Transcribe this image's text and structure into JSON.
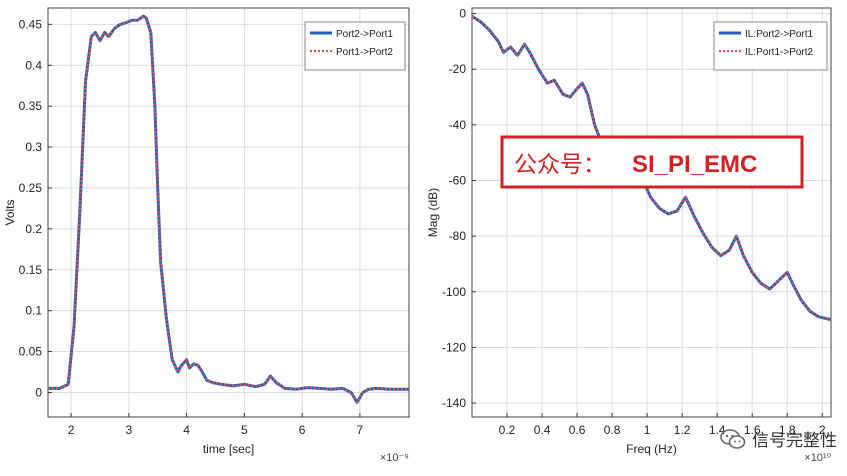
{
  "chart_data": [
    {
      "type": "line",
      "title": "",
      "xlabel": "time [sec]",
      "ylabel": "Volts",
      "x_exponent": "×10⁻⁹",
      "xlim": [
        1.6,
        7.85
      ],
      "ylim": [
        -0.03,
        0.47
      ],
      "xticks": [
        2,
        3,
        4,
        5,
        6,
        7
      ],
      "yticks": [
        0,
        0.05,
        0.1,
        0.15,
        0.2,
        0.25,
        0.3,
        0.35,
        0.4,
        0.45
      ],
      "grid": true,
      "legend_position": "top-right",
      "x": [
        1.6,
        1.8,
        1.95,
        2.05,
        2.15,
        2.25,
        2.35,
        2.42,
        2.5,
        2.58,
        2.65,
        2.75,
        2.85,
        2.95,
        3.05,
        3.15,
        3.25,
        3.3,
        3.38,
        3.45,
        3.5,
        3.55,
        3.65,
        3.75,
        3.85,
        3.9,
        4.0,
        4.05,
        4.12,
        4.2,
        4.27,
        4.35,
        4.45,
        4.6,
        4.8,
        5.0,
        5.2,
        5.35,
        5.45,
        5.55,
        5.7,
        5.9,
        6.1,
        6.3,
        6.5,
        6.7,
        6.85,
        6.95,
        7.05,
        7.15,
        7.3,
        7.5,
        7.85
      ],
      "series": [
        {
          "name": "Port2->Port1",
          "color": "#1f5fbf",
          "style": "solid",
          "values": [
            0.005,
            0.005,
            0.01,
            0.08,
            0.22,
            0.38,
            0.435,
            0.44,
            0.43,
            0.44,
            0.435,
            0.445,
            0.45,
            0.452,
            0.455,
            0.455,
            0.46,
            0.458,
            0.44,
            0.35,
            0.25,
            0.16,
            0.09,
            0.04,
            0.025,
            0.032,
            0.04,
            0.03,
            0.035,
            0.033,
            0.025,
            0.015,
            0.012,
            0.01,
            0.008,
            0.01,
            0.007,
            0.01,
            0.02,
            0.012,
            0.005,
            0.004,
            0.006,
            0.005,
            0.004,
            0.005,
            0.0,
            -0.012,
            0.0,
            0.004,
            0.005,
            0.004,
            0.004
          ]
        },
        {
          "name": "Port1->Port2",
          "color": "#d9534f",
          "style": "dotted",
          "values": [
            0.005,
            0.005,
            0.01,
            0.08,
            0.22,
            0.38,
            0.435,
            0.44,
            0.43,
            0.44,
            0.435,
            0.445,
            0.45,
            0.452,
            0.455,
            0.455,
            0.46,
            0.458,
            0.44,
            0.35,
            0.25,
            0.16,
            0.09,
            0.04,
            0.025,
            0.032,
            0.04,
            0.03,
            0.035,
            0.033,
            0.025,
            0.015,
            0.012,
            0.01,
            0.008,
            0.01,
            0.007,
            0.01,
            0.02,
            0.012,
            0.005,
            0.004,
            0.006,
            0.005,
            0.004,
            0.005,
            0.0,
            -0.012,
            0.0,
            0.004,
            0.005,
            0.004,
            0.004
          ]
        }
      ]
    },
    {
      "type": "line",
      "title": "",
      "xlabel": "Freq (Hz)",
      "ylabel": "Mag (dB)",
      "x_exponent": "×10¹⁰",
      "xlim": [
        0.0,
        2.05
      ],
      "ylim": [
        -145,
        2
      ],
      "xticks": [
        0.2,
        0.4,
        0.6,
        0.8,
        1,
        1.2,
        1.4,
        1.6,
        1.8,
        2
      ],
      "yticks": [
        0,
        -20,
        -40,
        -60,
        -80,
        -100,
        -120,
        -140
      ],
      "grid": true,
      "legend_position": "top-right",
      "x": [
        0.0,
        0.05,
        0.1,
        0.15,
        0.18,
        0.22,
        0.26,
        0.3,
        0.33,
        0.38,
        0.43,
        0.47,
        0.52,
        0.56,
        0.6,
        0.63,
        0.66,
        0.7,
        0.75,
        0.8,
        0.84,
        0.88,
        0.92,
        0.97,
        1.02,
        1.07,
        1.12,
        1.17,
        1.22,
        1.27,
        1.32,
        1.37,
        1.42,
        1.47,
        1.51,
        1.55,
        1.6,
        1.65,
        1.7,
        1.75,
        1.8,
        1.83,
        1.88,
        1.93,
        1.98,
        2.05
      ],
      "series": [
        {
          "name": "IL:Port2->Port1",
          "color": "#1f5fbf",
          "style": "solid",
          "values": [
            -1,
            -3,
            -6,
            -10,
            -14,
            -12,
            -15,
            -11,
            -14,
            -20,
            -25,
            -24,
            -29,
            -30,
            -27,
            -25,
            -29,
            -40,
            -48,
            -53,
            -55,
            -52,
            -48,
            -59,
            -66,
            -70,
            -72,
            -71,
            -66,
            -73,
            -79,
            -84,
            -87,
            -85,
            -80,
            -87,
            -93,
            -97,
            -99,
            -96,
            -93,
            -97,
            -103,
            -107,
            -109,
            -110
          ]
        },
        {
          "name": "IL:Port1->Port2",
          "color": "#d9534f",
          "style": "dotted",
          "values": [
            -1,
            -3,
            -6,
            -10,
            -14,
            -12,
            -15,
            -11,
            -14,
            -20,
            -25,
            -24,
            -29,
            -30,
            -27,
            -25,
            -29,
            -40,
            -48,
            -53,
            -55,
            -52,
            -48,
            -59,
            -66,
            -70,
            -72,
            -71,
            -66,
            -73,
            -79,
            -84,
            -87,
            -85,
            -80,
            -87,
            -93,
            -97,
            -99,
            -96,
            -93,
            -97,
            -103,
            -107,
            -109,
            -110
          ]
        }
      ]
    }
  ],
  "overlay": {
    "stamp_text": "公众号：",
    "stamp_code": "SI_PI_EMC",
    "stamp_color": "#d42020",
    "watermark_text": "信号完整性",
    "watermark_icon": "wechat-icon"
  }
}
